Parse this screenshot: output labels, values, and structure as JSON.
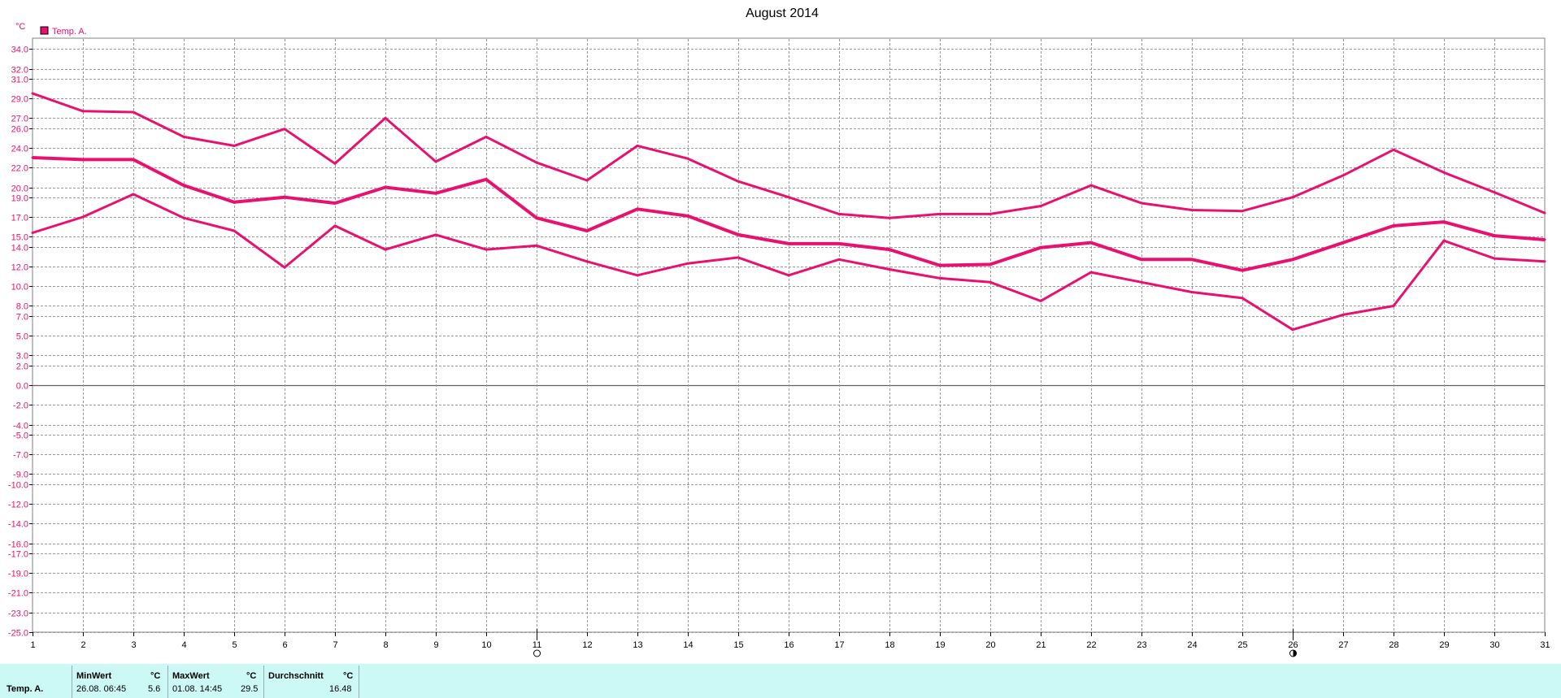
{
  "chart_data": {
    "type": "line",
    "title": "August 2014",
    "y_unit": "°C",
    "legend": [
      {
        "label": "Temp. A.",
        "color": "#e8116f",
        "placement": "top-left"
      }
    ],
    "x": [
      1,
      2,
      3,
      4,
      5,
      6,
      7,
      8,
      9,
      10,
      11,
      12,
      13,
      14,
      15,
      16,
      17,
      18,
      19,
      20,
      21,
      22,
      23,
      24,
      25,
      26,
      27,
      28,
      29,
      30,
      31
    ],
    "xlim": [
      1,
      31
    ],
    "ylim": [
      -25,
      35
    ],
    "y_ticks": [
      "34.0",
      "32.0",
      "31.0",
      "29.0",
      "27.0",
      "26.0",
      "24.0",
      "22.0",
      "20.0",
      "19.0",
      "17.0",
      "15.0",
      "14.0",
      "12.0",
      "10.0",
      "8.0",
      "7.0",
      "5.0",
      "3.0",
      "2.0",
      "0.0",
      "-2.0",
      "-4.0",
      "-5.0",
      "-7.0",
      "-9.0",
      "-10.0",
      "-12.0",
      "-14.0",
      "-16.0",
      "-17.0",
      "-19.0",
      "-21.0",
      "-23.0",
      "-25.0"
    ],
    "grid": true,
    "series": [
      {
        "role": "max",
        "color": "#e8116f",
        "values": [
          29.5,
          27.7,
          27.6,
          25.1,
          24.2,
          25.9,
          22.4,
          27.0,
          22.6,
          25.1,
          22.5,
          20.7,
          24.2,
          22.9,
          20.6,
          19.0,
          17.3,
          16.9,
          17.3,
          17.3,
          18.1,
          20.2,
          18.4,
          17.7,
          17.6,
          19.0,
          21.2,
          23.8,
          21.5,
          19.5,
          17.4
        ]
      },
      {
        "role": "avg",
        "color": "#e8116f",
        "values": [
          23.0,
          22.8,
          22.8,
          20.2,
          18.5,
          19.0,
          18.4,
          20.0,
          19.4,
          20.8,
          16.9,
          15.6,
          17.8,
          17.1,
          15.2,
          14.3,
          14.3,
          13.7,
          12.1,
          12.2,
          13.9,
          14.4,
          12.7,
          12.7,
          11.6,
          12.7,
          14.4,
          16.1,
          16.5,
          15.1,
          14.7
        ]
      },
      {
        "role": "min",
        "color": "#e8116f",
        "values": [
          15.4,
          17.0,
          19.3,
          16.9,
          15.6,
          11.9,
          16.1,
          13.7,
          15.2,
          13.7,
          14.1,
          12.5,
          11.1,
          12.3,
          12.9,
          11.1,
          12.7,
          11.7,
          10.8,
          10.4,
          8.5,
          11.4,
          10.4,
          9.4,
          8.8,
          5.6,
          7.1,
          8.0,
          14.6,
          12.8,
          12.5
        ]
      }
    ],
    "markers": [
      {
        "x": 11,
        "icon": "full-moon-icon"
      },
      {
        "x": 26,
        "icon": "half-moon-icon"
      }
    ]
  },
  "stats": {
    "row_label": "Temp. A.",
    "min": {
      "header": "MinWert",
      "unit": "°C",
      "datetime": "26.08.  06:45",
      "value": "5.6"
    },
    "max": {
      "header": "MaxWert",
      "unit": "°C",
      "datetime": "01.08.  14:45",
      "value": "29.5"
    },
    "avg": {
      "header": "Durchschnitt",
      "unit": "°C",
      "value": "16.48"
    }
  }
}
